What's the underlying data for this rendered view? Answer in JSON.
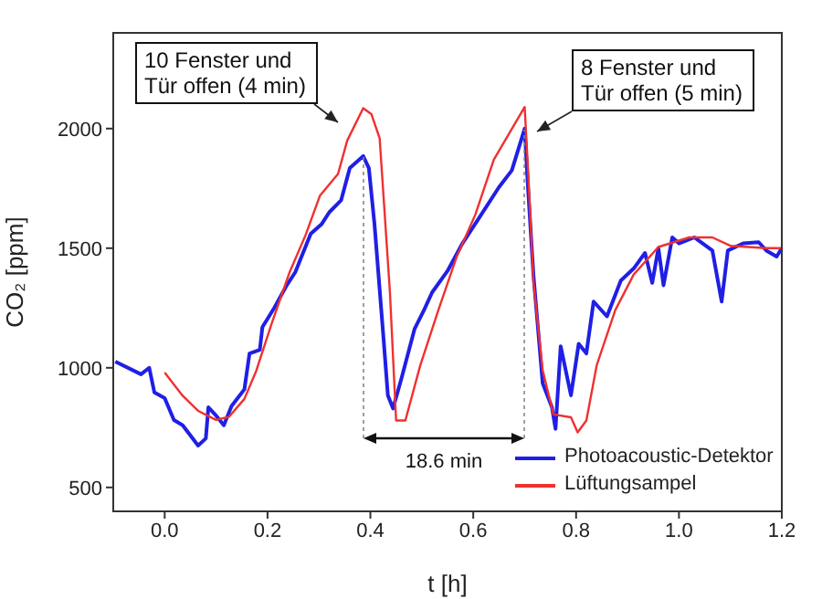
{
  "chart_data": {
    "type": "line",
    "xlabel": "t [h]",
    "ylabel": "CO₂ [ppm]",
    "xlim": [
      -0.1,
      1.2
    ],
    "xticks": [
      {
        "value": 0,
        "label": "0.0"
      },
      0.2,
      0.4,
      0.6,
      0.8,
      {
        "value": 1,
        "label": "1.0"
      },
      1.2
    ],
    "ylim": [
      400,
      2400
    ],
    "yticks": [
      500,
      1000,
      1500,
      2000
    ],
    "grid": false,
    "legend": "bottom right",
    "marker": "none",
    "line_style": "solid",
    "series": [
      {
        "name": "Photoacoustic-Detektor",
        "color": "#1f1fe6",
        "x": [
          -0.096,
          -0.046,
          -0.03,
          -0.02,
          0,
          0.018,
          0.035,
          0.065,
          0.08,
          0.085,
          0.1,
          0.115,
          0.13,
          0.155,
          0.165,
          0.185,
          0.19,
          0.213,
          0.236,
          0.254,
          0.284,
          0.305,
          0.32,
          0.343,
          0.36,
          0.386,
          0.397,
          0.408,
          0.426,
          0.434,
          0.444,
          0.461,
          0.486,
          0.504,
          0.52,
          0.55,
          0.579,
          0.614,
          0.65,
          0.675,
          0.7,
          0.706,
          0.717,
          0.735,
          0.753,
          0.76,
          0.77,
          0.79,
          0.805,
          0.82,
          0.834,
          0.86,
          0.887,
          0.912,
          0.934,
          0.948,
          0.96,
          0.97,
          0.987,
          1,
          1.03,
          1.065,
          1.083,
          1.095,
          1.125,
          1.155,
          1.17,
          1.19,
          1.2
        ],
        "values": [
          1026,
          973,
          1000,
          897,
          873,
          782,
          760,
          675,
          705,
          835,
          800,
          760,
          840,
          910,
          1060,
          1075,
          1170,
          1250,
          1340,
          1400,
          1560,
          1600,
          1650,
          1700,
          1835,
          1885,
          1835,
          1600,
          1110,
          885,
          830,
          960,
          1163,
          1240,
          1315,
          1405,
          1520,
          1635,
          1755,
          1825,
          2000,
          1770,
          1390,
          935,
          835,
          745,
          1090,
          885,
          1100,
          1060,
          1277,
          1215,
          1365,
          1415,
          1480,
          1355,
          1500,
          1345,
          1545,
          1520,
          1545,
          1490,
          1277,
          1490,
          1520,
          1525,
          1490,
          1465,
          1500
        ]
      },
      {
        "name": "Lüftungsampel",
        "color": "#f03030",
        "x": [
          0,
          0.035,
          0.065,
          0.1,
          0.125,
          0.155,
          0.178,
          0.208,
          0.243,
          0.274,
          0.302,
          0.337,
          0.355,
          0.386,
          0.402,
          0.418,
          0.438,
          0.45,
          0.468,
          0.497,
          0.532,
          0.568,
          0.604,
          0.64,
          0.7,
          0.707,
          0.717,
          0.735,
          0.756,
          0.79,
          0.803,
          0.82,
          0.84,
          0.876,
          0.912,
          0.96,
          1.02,
          1.065,
          1.1,
          1.17,
          1.2
        ],
        "values": [
          980,
          883,
          820,
          782,
          795,
          870,
          987,
          1185,
          1400,
          1555,
          1720,
          1810,
          1950,
          2085,
          2060,
          1960,
          1315,
          780,
          780,
          1010,
          1240,
          1465,
          1640,
          1870,
          2090,
          1810,
          1360,
          990,
          805,
          793,
          730,
          780,
          1010,
          1240,
          1390,
          1505,
          1545,
          1545,
          1510,
          1500,
          1500
        ]
      }
    ],
    "annotations": [
      "10 Fenster und Tür offen (4 min)",
      "8 Fenster und Tür offen (5 min)",
      "18.6 min"
    ]
  }
}
